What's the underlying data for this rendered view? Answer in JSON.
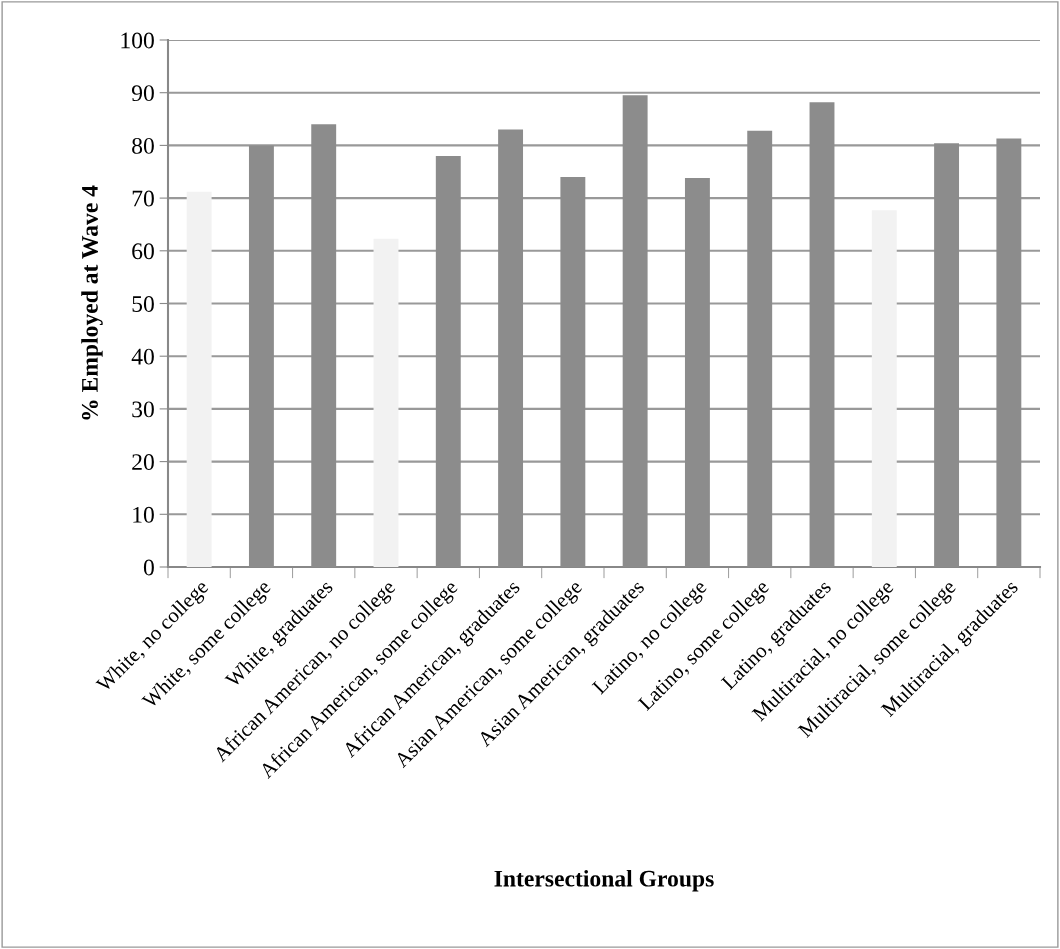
{
  "chart_data": {
    "type": "bar",
    "xlabel": "Intersectional Groups",
    "ylabel": "% Employed at Wave 4",
    "categories": [
      "White, no college",
      "White, some college",
      "White, graduates",
      "African American, no college",
      "African American, some college",
      "African American, graduates",
      "Asian American, some college",
      "Asian American, graduates",
      "Latino, no college",
      "Latino, some college",
      "Latino, graduates",
      "Multiracial, no college",
      "Multiracial, some college",
      "Multiracial, graduates"
    ],
    "values": [
      71.2,
      80,
      84,
      62.3,
      78,
      83,
      74,
      89.5,
      73.8,
      82.8,
      88.2,
      67.7,
      80.4,
      81.3
    ],
    "colors": [
      "#f2f2f2",
      "#8c8c8c",
      "#8c8c8c",
      "#f2f2f2",
      "#8c8c8c",
      "#8c8c8c",
      "#8c8c8c",
      "#8c8c8c",
      "#8c8c8c",
      "#8c8c8c",
      "#8c8c8c",
      "#f2f2f2",
      "#8c8c8c",
      "#8c8c8c"
    ],
    "ylim": [
      0,
      100
    ],
    "yticks": [
      0,
      10,
      20,
      30,
      40,
      50,
      60,
      70,
      80,
      90,
      100
    ],
    "grid": "y"
  }
}
